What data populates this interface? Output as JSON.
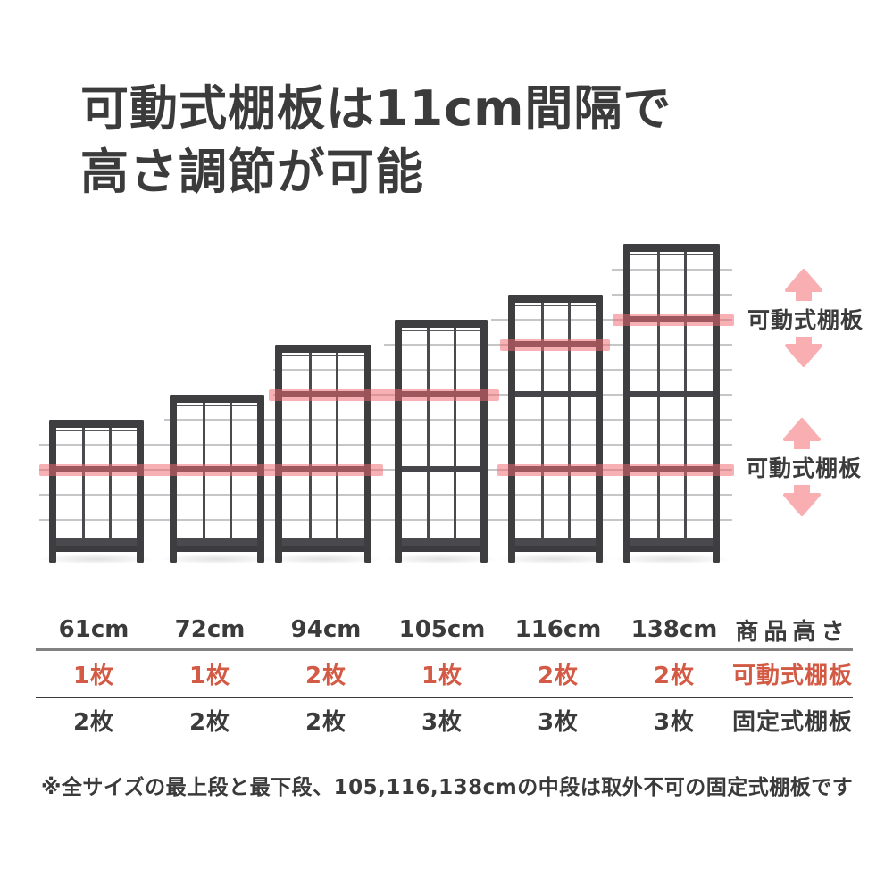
{
  "title": {
    "line1": "可動式棚板は11cm間隔で",
    "line2": "高さ調節が可能"
  },
  "diagram": {
    "arrow_labels": [
      "可動式棚板",
      "可動式棚板"
    ],
    "unit_heights": [
      "61cm",
      "72cm",
      "94cm",
      "105cm",
      "116cm",
      "138cm"
    ],
    "shelf_interval_note": "11cm"
  },
  "table": {
    "height_columns": [
      "61cm",
      "72cm",
      "94cm",
      "105cm",
      "116cm",
      "138cm"
    ],
    "height_row_label": "商品高さ",
    "movable_row": {
      "label": "可動式棚板",
      "values": [
        "1枚",
        "1枚",
        "2枚",
        "1枚",
        "2枚",
        "2枚"
      ]
    },
    "fixed_row": {
      "label": "固定式棚板",
      "values": [
        "2枚",
        "2枚",
        "2枚",
        "3枚",
        "3枚",
        "3枚"
      ]
    }
  },
  "footnote": "※全サイズの最上段と最下段、105,116,138cmの中段は取外不可の固定式棚板です",
  "colors": {
    "text_dark": "#3b3b3b",
    "accent_red_text": "#d35b45",
    "highlight_band_pink": "#ef6a70",
    "arrow_pink": "#f9aeb2",
    "frame_dark": "#3e3e41",
    "gridline_gray": "#c6c6c6"
  }
}
